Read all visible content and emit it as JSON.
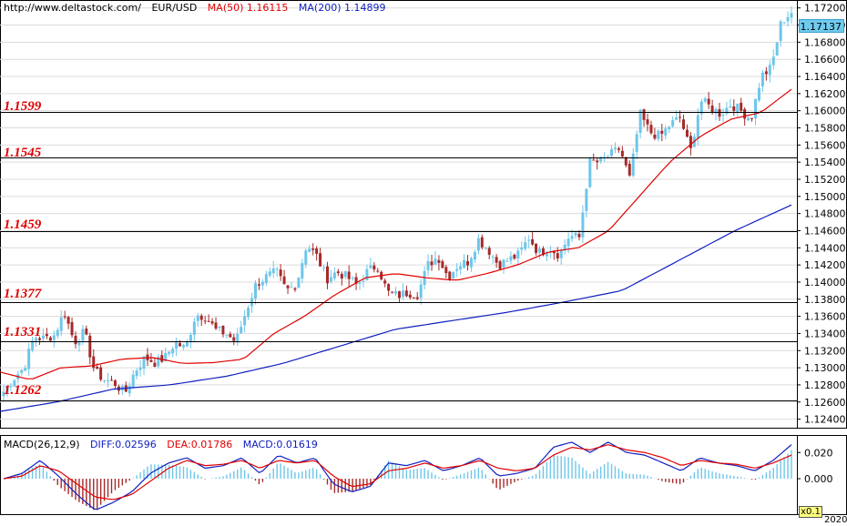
{
  "header": {
    "site": "http://www.deltastock.com/",
    "symbol": "EUR/USD",
    "ma50": "MA(50)  1.16115",
    "ma200": "MA(200)  1.14899"
  },
  "macd_header": {
    "title": "MACD(26,12,9)",
    "diff": "DIFF:0.02596",
    "dea": "DEA:0.01786",
    "macd": "MACD:0.01619"
  },
  "current_price": "1.17137",
  "zoom_label": "x0.1",
  "year_label": "2020",
  "levels": [
    "1.1599",
    "1.1545",
    "1.1459",
    "1.1377",
    "1.1331",
    "1.1262"
  ],
  "colors": {
    "up": "#6ec6ea",
    "down": "#a52a2a",
    "ma50": "#e00000",
    "ma200": "#1020c0",
    "dea": "#e00000",
    "diff": "#1020c0",
    "level_line": "#000000"
  },
  "chart_data": {
    "type": "candlestick",
    "symbol": "EUR/USD",
    "y_ticks": [
      "1.17200",
      "1.17000",
      "1.16800",
      "1.16600",
      "1.16400",
      "1.16200",
      "1.16000",
      "1.15800",
      "1.15600",
      "1.15400",
      "1.15200",
      "1.15000",
      "1.14800",
      "1.14600",
      "1.14400",
      "1.14200",
      "1.14000",
      "1.13800",
      "1.13600",
      "1.13400",
      "1.13200",
      "1.13000",
      "1.12800",
      "1.12600",
      "1.12400"
    ],
    "ylim": [
      1.123,
      1.1725
    ],
    "horizontal_levels": [
      1.1599,
      1.1545,
      1.1459,
      1.1377,
      1.1331,
      1.1262
    ],
    "close_anchors": [
      1.1272,
      1.1288,
      1.13,
      1.1336,
      1.1334,
      1.1338,
      1.1365,
      1.133,
      1.1342,
      1.1296,
      1.1286,
      1.1282,
      1.127,
      1.1296,
      1.1312,
      1.1306,
      1.1312,
      1.133,
      1.1322,
      1.1362,
      1.136,
      1.1344,
      1.134,
      1.133,
      1.1366,
      1.1398,
      1.1406,
      1.1412,
      1.139,
      1.1398,
      1.1444,
      1.143,
      1.1404,
      1.1412,
      1.1406,
      1.1396,
      1.1412,
      1.142,
      1.1388,
      1.1384,
      1.1388,
      1.1386,
      1.142,
      1.143,
      1.1406,
      1.142,
      1.1424,
      1.145,
      1.1438,
      1.142,
      1.1426,
      1.1432,
      1.1452,
      1.1434,
      1.144,
      1.1432,
      1.1454,
      1.1452,
      1.154,
      1.154,
      1.1548,
      1.1556,
      1.152,
      1.1596,
      1.1575,
      1.157,
      1.1584,
      1.1592,
      1.1552,
      1.1612,
      1.1604,
      1.1596,
      1.1608,
      1.16,
      1.159,
      1.164,
      1.165,
      1.1704,
      1.1715
    ],
    "ma50_anchors": [
      1.1295,
      1.1286,
      1.13,
      1.1302,
      1.131,
      1.1312,
      1.1305,
      1.1306,
      1.131,
      1.134,
      1.136,
      1.1385,
      1.1405,
      1.141,
      1.1405,
      1.1402,
      1.141,
      1.142,
      1.1435,
      1.144,
      1.146,
      1.15,
      1.154,
      1.157,
      1.159,
      1.1598,
      1.1625
    ],
    "ma200_anchors": [
      1.1249,
      1.126,
      1.1275,
      1.128,
      1.129,
      1.1305,
      1.1325,
      1.1345,
      1.1355,
      1.1365,
      1.1377,
      1.139,
      1.1425,
      1.146,
      1.149
    ],
    "macd_ylim": [
      -0.025,
      0.032
    ],
    "macd_ticks": [
      "0.020",
      "0.000"
    ],
    "diff_anchors": [
      0.0,
      0.004,
      0.014,
      0.002,
      -0.012,
      -0.024,
      -0.018,
      -0.01,
      0.004,
      0.012,
      0.016,
      0.008,
      0.01,
      0.016,
      0.004,
      0.018,
      0.012,
      0.016,
      -0.004,
      -0.01,
      -0.006,
      0.012,
      0.01,
      0.014,
      0.006,
      0.01,
      0.016,
      0.002,
      0.004,
      0.008,
      0.024,
      0.028,
      0.02,
      0.028,
      0.02,
      0.018,
      0.012,
      0.006,
      0.016,
      0.012,
      0.01,
      0.006,
      0.014,
      0.026
    ],
    "dea_anchors": [
      0.0,
      0.002,
      0.01,
      0.006,
      -0.004,
      -0.014,
      -0.016,
      -0.012,
      -0.002,
      0.008,
      0.014,
      0.01,
      0.011,
      0.014,
      0.008,
      0.014,
      0.012,
      0.014,
      0.002,
      -0.006,
      -0.004,
      0.006,
      0.008,
      0.012,
      0.008,
      0.01,
      0.014,
      0.008,
      0.006,
      0.008,
      0.018,
      0.024,
      0.022,
      0.026,
      0.022,
      0.02,
      0.016,
      0.01,
      0.014,
      0.012,
      0.011,
      0.008,
      0.012,
      0.018
    ]
  }
}
